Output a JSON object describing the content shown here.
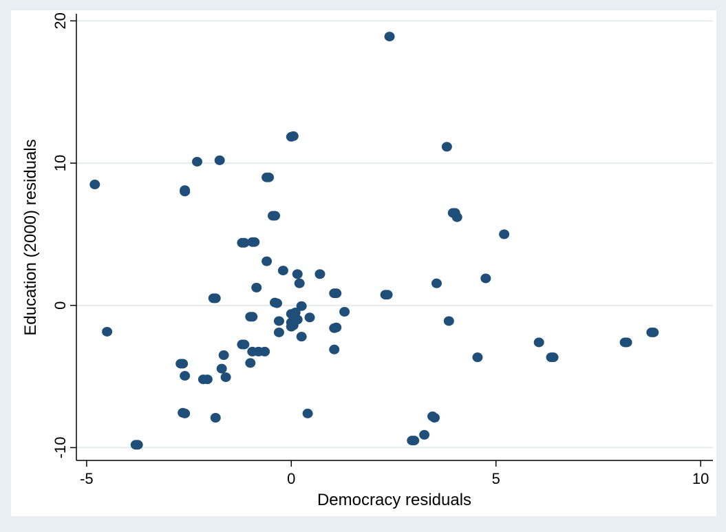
{
  "chart_data": {
    "type": "scatter",
    "title": "",
    "xlabel": "Democracy residuals",
    "ylabel": "Education (2000) residuals",
    "xlim": [
      -5.25,
      10.3
    ],
    "ylim": [
      -10.9,
      20.5
    ],
    "xticks": [
      -5,
      0,
      5,
      10
    ],
    "yticks": [
      -10,
      0,
      10,
      20
    ],
    "xtick_labels": [
      "-5",
      "0",
      "5",
      "10"
    ],
    "ytick_labels": [
      "-10",
      "0",
      "10",
      "20"
    ],
    "grid": true,
    "marker_color": "#1f4e79",
    "x": [
      2.4,
      0.0,
      0.05,
      3.8,
      -2.3,
      -1.75,
      -4.8,
      -2.6,
      -2.6,
      -0.6,
      -0.55,
      3.95,
      4.0,
      4.05,
      -0.45,
      -0.4,
      5.2,
      -1.2,
      -1.15,
      -0.95,
      -0.9,
      -0.6,
      -0.2,
      0.15,
      0.7,
      4.75,
      3.55,
      0.2,
      -0.85,
      1.05,
      1.1,
      2.3,
      2.35,
      0.0,
      0.25,
      -1.9,
      -1.85,
      -0.4,
      -0.35,
      0.1,
      1.3,
      -4.5,
      -1.0,
      -0.95,
      -0.3,
      0.45,
      0.0,
      0.05,
      0.15,
      3.85,
      0.0,
      0.05,
      1.05,
      1.1,
      -0.3,
      0.25,
      6.05,
      8.15,
      8.2,
      8.8,
      8.85,
      -1.2,
      -1.15,
      -0.95,
      -0.8,
      -0.65,
      1.05,
      -1.65,
      4.55,
      6.35,
      6.4,
      -2.7,
      -2.65,
      -1.0,
      -1.7,
      -2.6,
      -2.15,
      -2.05,
      -1.6,
      -2.65,
      -2.6,
      -1.85,
      0.4,
      3.45,
      3.5,
      3.25,
      2.95,
      3.0,
      -3.8,
      -3.75
    ],
    "y": [
      18.9,
      11.85,
      11.9,
      11.15,
      10.1,
      10.2,
      8.5,
      8.1,
      8.0,
      9.0,
      9.0,
      6.5,
      6.5,
      6.2,
      6.3,
      6.3,
      5.0,
      4.4,
      4.4,
      4.45,
      4.45,
      3.1,
      2.45,
      2.2,
      2.2,
      1.9,
      1.55,
      1.55,
      1.25,
      0.85,
      0.85,
      0.75,
      0.75,
      -0.6,
      -0.05,
      0.5,
      0.5,
      0.2,
      0.15,
      -0.5,
      -0.45,
      -1.85,
      -0.8,
      -0.8,
      -1.1,
      -0.85,
      -1.2,
      -1.1,
      -1.0,
      -1.1,
      -1.5,
      -1.4,
      -1.6,
      -1.55,
      -1.9,
      -2.2,
      -2.6,
      -2.6,
      -2.6,
      -1.9,
      -1.9,
      -2.75,
      -2.75,
      -3.25,
      -3.25,
      -3.25,
      -3.1,
      -3.5,
      -3.65,
      -3.65,
      -3.65,
      -4.1,
      -4.1,
      -4.05,
      -4.45,
      -4.95,
      -5.2,
      -5.2,
      -5.05,
      -7.55,
      -7.6,
      -7.9,
      -7.6,
      -7.8,
      -7.9,
      -9.1,
      -9.5,
      -9.5,
      -9.8,
      -9.8
    ]
  }
}
